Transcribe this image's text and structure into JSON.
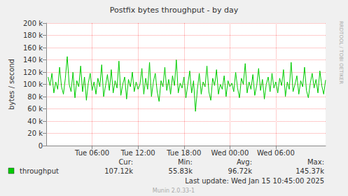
{
  "chart_data": {
    "type": "line",
    "title": "Postfix bytes throughput - by day",
    "ylabel": "bytes / second",
    "x": [
      0.25,
      0.5,
      0.75,
      1,
      1.25,
      1.5,
      1.75,
      2,
      2.25,
      2.5,
      2.75,
      3,
      3.25,
      3.5,
      3.75,
      4,
      4.25,
      4.5,
      4.75,
      5,
      5.25,
      5.5,
      5.75,
      6,
      6.25,
      6.5,
      6.75,
      7,
      7.25,
      7.5,
      7.75,
      8,
      8.25,
      8.5,
      8.75,
      9,
      9.25,
      9.5,
      9.75,
      10,
      10.25,
      10.5,
      10.75,
      11,
      11.25,
      11.5,
      11.75,
      12,
      12.25,
      12.5,
      12.75,
      13,
      13.25,
      13.5,
      13.75,
      14,
      14.25,
      14.5,
      14.75,
      15,
      15.25,
      15.5,
      15.75,
      16,
      16.25,
      16.5,
      16.75,
      17,
      17.25,
      17.5,
      17.75,
      18,
      18.25,
      18.5,
      18.75,
      19,
      19.25,
      19.5,
      19.75,
      20,
      20.25,
      20.5,
      20.75,
      21,
      21.25,
      21.5,
      21.75,
      22,
      22.25,
      22.5,
      22.75,
      23,
      23.25,
      23.5,
      23.75,
      24,
      24.25,
      24.5,
      24.75,
      25,
      25.25,
      25.5,
      25.75,
      26,
      26.25,
      26.5,
      26.75,
      27,
      27.25,
      27.5,
      27.75,
      28,
      28.25,
      28.5,
      28.75,
      29,
      29.25,
      29.5,
      29.75,
      30,
      30.25,
      30.5,
      30.75,
      31,
      31.25,
      31.5,
      31.75,
      32,
      32.25,
      32.5,
      32.75,
      33,
      33.25,
      33.5,
      33.75,
      34,
      34.25,
      34.5,
      34.75,
      35,
      35.25,
      35.5,
      35.75,
      36,
      36.25,
      36.5
    ],
    "series": [
      {
        "name": "throughput",
        "color": "#00cc00",
        "values": [
          112000,
          98000,
          118000,
          86000,
          104000,
          92000,
          128000,
          96000,
          84000,
          110000,
          145370,
          100000,
          88000,
          120000,
          78000,
          106000,
          96000,
          130000,
          88000,
          112000,
          74000,
          102000,
          118000,
          90000,
          104000,
          84000,
          110000,
          96000,
          132000,
          80000,
          98000,
          116000,
          90000,
          124000,
          86000,
          106000,
          94000,
          138000,
          82000,
          100000,
          112000,
          76000,
          108000,
          96000,
          120000,
          88000,
          104000,
          92000,
          100000,
          126000,
          84000,
          110000,
          92000,
          136000,
          80000,
          104000,
          118000,
          88000,
          72000,
          106000,
          96000,
          128000,
          90000,
          108000,
          84000,
          114000,
          98000,
          140000,
          86000,
          102000,
          94000,
          112000,
          78000,
          100000,
          122000,
          86000,
          106000,
          55830,
          92000,
          118000,
          84000,
          104000,
          96000,
          130000,
          88000,
          74000,
          110000,
          98000,
          124000,
          84000,
          100000,
          92000,
          114000,
          80000,
          106000,
          96000,
          102000,
          88000,
          120000,
          94000,
          78000,
          110000,
          100000,
          134000,
          86000,
          104000,
          92000,
          116000,
          82000,
          98000,
          126000,
          90000,
          108000,
          76000,
          100000,
          112000,
          88000,
          118000,
          94000,
          104000,
          86000,
          110000,
          98000,
          124000,
          80000,
          104000,
          92000,
          136000,
          88000,
          100000,
          114000,
          84000,
          106000,
          96000,
          128000,
          90000,
          78000,
          102000,
          118000,
          94000,
          108000,
          86000,
          122000,
          98000,
          84000,
          107120
        ]
      }
    ],
    "xlim": [
      0,
      36.5
    ],
    "xticks": [
      {
        "value": 6,
        "label": "Tue 06:00"
      },
      {
        "value": 12,
        "label": "Tue 12:00"
      },
      {
        "value": 18,
        "label": "Tue 18:00"
      },
      {
        "value": 24,
        "label": "Wed 00:00"
      },
      {
        "value": 30,
        "label": "Wed 06:00"
      }
    ],
    "ylim": [
      0,
      200000
    ],
    "yticks": [
      0,
      {
        "value": 20000,
        "label": "20 k"
      },
      {
        "value": 40000,
        "label": "40 k"
      },
      {
        "value": 60000,
        "label": "60 k"
      },
      {
        "value": 80000,
        "label": "80 k"
      },
      {
        "value": 100000,
        "label": "100 k"
      },
      {
        "value": 120000,
        "label": "120 k"
      },
      {
        "value": 140000,
        "label": "140 k"
      },
      {
        "value": 160000,
        "label": "160 k"
      },
      {
        "value": 180000,
        "label": "180 k"
      },
      {
        "value": 200000,
        "label": "200 k"
      }
    ],
    "grid": true,
    "legend_table": {
      "headers": [
        "Cur:",
        "Min:",
        "Avg:",
        "Max:"
      ],
      "values": [
        "107.12k",
        "55.83k",
        "96.72k",
        "145.37k"
      ]
    },
    "annotations": [
      "Last update: Wed Jan 15 10:45:00 2025",
      "Munin 2.0.33-1",
      "RRDTOOL / TOBI OETIKER"
    ]
  }
}
